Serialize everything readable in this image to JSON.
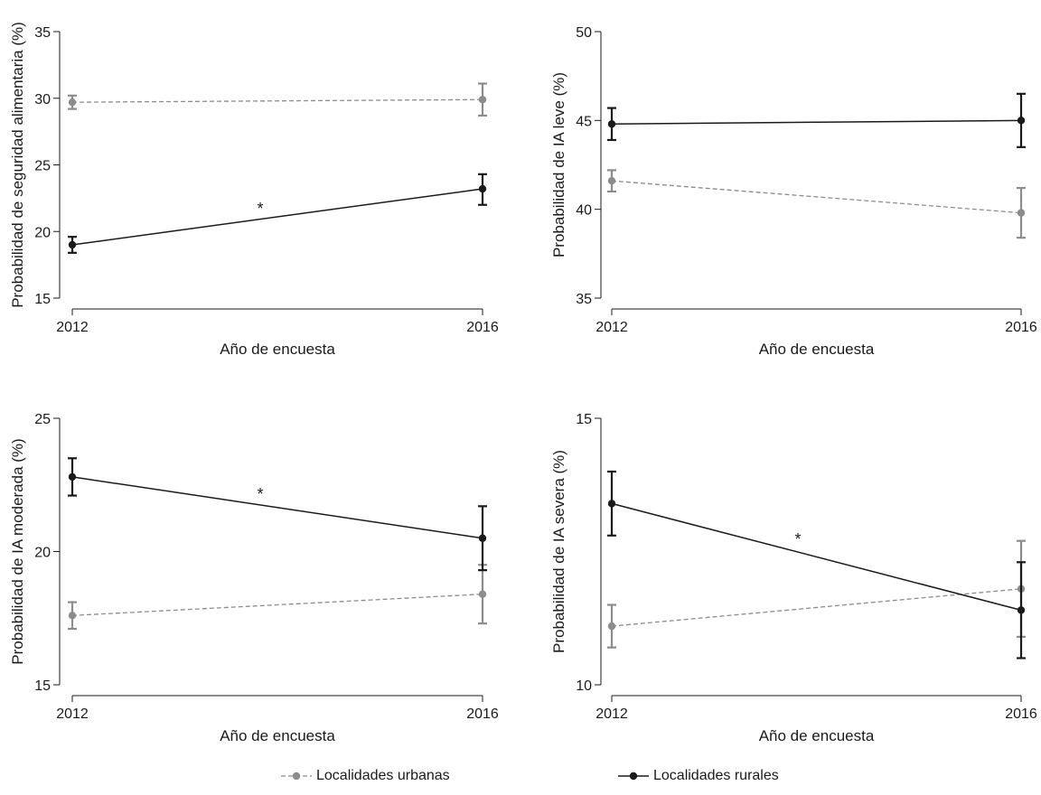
{
  "chart_data": [
    {
      "type": "line",
      "ylabel": "Probabilidad de seguridad alimentaria (%)",
      "xlabel": "Año de encuesta",
      "x": [
        "2012",
        "2016"
      ],
      "ylim": [
        15,
        35
      ],
      "yticks": [
        "15",
        "20",
        "25",
        "30",
        "35"
      ],
      "annotation": "*",
      "series": [
        {
          "name": "Localidades urbanas",
          "values": [
            29.7,
            29.9
          ],
          "ci_low": [
            29.2,
            28.7
          ],
          "ci_high": [
            30.2,
            31.1
          ]
        },
        {
          "name": "Localidades rurales",
          "values": [
            19.0,
            23.2
          ],
          "ci_low": [
            18.4,
            22.0
          ],
          "ci_high": [
            19.6,
            24.3
          ]
        }
      ]
    },
    {
      "type": "line",
      "ylabel": "Probabilidad de IA leve (%)",
      "xlabel": "Año de encuesta",
      "x": [
        "2012",
        "2016"
      ],
      "ylim": [
        35,
        50
      ],
      "yticks": [
        "35",
        "40",
        "45",
        "50"
      ],
      "annotation": "",
      "series": [
        {
          "name": "Localidades urbanas",
          "values": [
            41.6,
            39.8
          ],
          "ci_low": [
            41.0,
            38.4
          ],
          "ci_high": [
            42.2,
            41.2
          ]
        },
        {
          "name": "Localidades rurales",
          "values": [
            44.8,
            45.0
          ],
          "ci_low": [
            43.9,
            43.5
          ],
          "ci_high": [
            45.7,
            46.5
          ]
        }
      ]
    },
    {
      "type": "line",
      "ylabel": "Probabilidad de IA moderada (%)",
      "xlabel": "Año de encuesta",
      "x": [
        "2012",
        "2016"
      ],
      "ylim": [
        15,
        25
      ],
      "yticks": [
        "15",
        "20",
        "25"
      ],
      "annotation": "*",
      "series": [
        {
          "name": "Localidades urbanas",
          "values": [
            17.6,
            18.4
          ],
          "ci_low": [
            17.1,
            17.3
          ],
          "ci_high": [
            18.1,
            19.5
          ]
        },
        {
          "name": "Localidades rurales",
          "values": [
            22.8,
            20.5
          ],
          "ci_low": [
            22.1,
            19.3
          ],
          "ci_high": [
            23.5,
            21.7
          ]
        }
      ]
    },
    {
      "type": "line",
      "ylabel": "Probabilidad de IA severa (%)",
      "xlabel": "Año de encuesta",
      "x": [
        "2012",
        "2016"
      ],
      "ylim": [
        10,
        15
      ],
      "yticks": [
        "10",
        "15"
      ],
      "annotation": "*",
      "series": [
        {
          "name": "Localidades urbanas",
          "values": [
            11.1,
            11.8
          ],
          "ci_low": [
            10.7,
            10.9
          ],
          "ci_high": [
            11.5,
            12.7
          ]
        },
        {
          "name": "Localidades rurales",
          "values": [
            13.4,
            11.4
          ],
          "ci_low": [
            12.8,
            10.5
          ],
          "ci_high": [
            14.0,
            12.3
          ]
        }
      ]
    }
  ],
  "legend": {
    "items": [
      {
        "label": "Localidades urbanas",
        "color": "#8c8c8c",
        "style": "dashed"
      },
      {
        "label": "Localidades rurales",
        "color": "#1a1a1a",
        "style": "solid"
      }
    ]
  }
}
